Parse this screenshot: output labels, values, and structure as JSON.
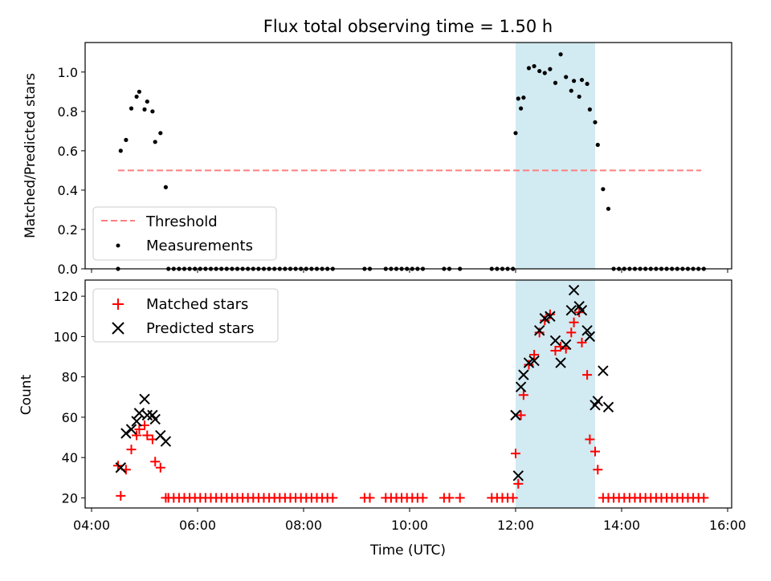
{
  "title": "Flux total observing time = 1.50 h",
  "chart_data": [
    {
      "type": "scatter",
      "ylabel": "Matched/Predicted stars",
      "xlabel": "",
      "ylim": [
        0,
        1.15
      ],
      "xlim": [
        "04:00",
        "16:00"
      ],
      "y_ticks": [
        "0.0",
        "0.2",
        "0.4",
        "0.6",
        "0.8",
        "1.0"
      ],
      "legend_position": "lower-left",
      "shaded_interval": {
        "start": "12:00",
        "end": "13:30",
        "color": "#add8e6"
      },
      "threshold": {
        "name": "Threshold",
        "value": 0.5,
        "x_start": "04:30",
        "x_end": "15:30",
        "color": "#ff7f7f",
        "style": "dashed"
      },
      "series": [
        {
          "name": "Measurements",
          "color": "#000000",
          "marker": "dot",
          "points": [
            [
              "04:30",
              0.0
            ],
            [
              "04:33",
              0.6
            ],
            [
              "04:39",
              0.655
            ],
            [
              "04:45",
              0.815
            ],
            [
              "04:51",
              0.875
            ],
            [
              "04:54",
              0.9
            ],
            [
              "05:00",
              0.81
            ],
            [
              "05:03",
              0.85
            ],
            [
              "05:09",
              0.8
            ],
            [
              "05:12",
              0.645
            ],
            [
              "05:18",
              0.69
            ],
            [
              "05:24",
              0.415
            ],
            [
              "05:27",
              0.0
            ],
            [
              "05:33",
              0.0
            ],
            [
              "05:39",
              0.0
            ],
            [
              "05:45",
              0.0
            ],
            [
              "05:51",
              0.0
            ],
            [
              "05:57",
              0.0
            ],
            [
              "06:03",
              0.0
            ],
            [
              "06:09",
              0.0
            ],
            [
              "06:15",
              0.0
            ],
            [
              "06:21",
              0.0
            ],
            [
              "06:27",
              0.0
            ],
            [
              "06:33",
              0.0
            ],
            [
              "06:39",
              0.0
            ],
            [
              "06:45",
              0.0
            ],
            [
              "06:51",
              0.0
            ],
            [
              "06:57",
              0.0
            ],
            [
              "07:03",
              0.0
            ],
            [
              "07:09",
              0.0
            ],
            [
              "07:15",
              0.0
            ],
            [
              "07:21",
              0.0
            ],
            [
              "07:27",
              0.0
            ],
            [
              "07:33",
              0.0
            ],
            [
              "07:39",
              0.0
            ],
            [
              "07:45",
              0.0
            ],
            [
              "07:51",
              0.0
            ],
            [
              "07:57",
              0.0
            ],
            [
              "08:03",
              0.0
            ],
            [
              "08:09",
              0.0
            ],
            [
              "08:15",
              0.0
            ],
            [
              "08:21",
              0.0
            ],
            [
              "08:27",
              0.0
            ],
            [
              "08:33",
              0.0
            ],
            [
              "09:09",
              0.0
            ],
            [
              "09:15",
              0.0
            ],
            [
              "09:33",
              0.0
            ],
            [
              "09:39",
              0.0
            ],
            [
              "09:45",
              0.0
            ],
            [
              "09:51",
              0.0
            ],
            [
              "09:57",
              0.0
            ],
            [
              "10:03",
              0.0
            ],
            [
              "10:09",
              0.0
            ],
            [
              "10:15",
              0.0
            ],
            [
              "10:39",
              0.0
            ],
            [
              "10:45",
              0.0
            ],
            [
              "10:57",
              0.0
            ],
            [
              "11:33",
              0.0
            ],
            [
              "11:39",
              0.0
            ],
            [
              "11:45",
              0.0
            ],
            [
              "11:51",
              0.0
            ],
            [
              "11:57",
              0.0
            ],
            [
              "12:00",
              0.69
            ],
            [
              "12:03",
              0.865
            ],
            [
              "12:06",
              0.815
            ],
            [
              "12:09",
              0.87
            ],
            [
              "12:15",
              1.02
            ],
            [
              "12:21",
              1.03
            ],
            [
              "12:27",
              1.005
            ],
            [
              "12:33",
              0.995
            ],
            [
              "12:39",
              1.015
            ],
            [
              "12:45",
              0.945
            ],
            [
              "12:51",
              1.09
            ],
            [
              "12:57",
              0.975
            ],
            [
              "13:03",
              0.905
            ],
            [
              "13:06",
              0.955
            ],
            [
              "13:12",
              0.875
            ],
            [
              "13:15",
              0.96
            ],
            [
              "13:21",
              0.94
            ],
            [
              "13:24",
              0.81
            ],
            [
              "13:30",
              0.745
            ],
            [
              "13:33",
              0.63
            ],
            [
              "13:39",
              0.405
            ],
            [
              "13:45",
              0.305
            ],
            [
              "13:51",
              0.0
            ],
            [
              "13:57",
              0.0
            ],
            [
              "14:03",
              0.0
            ],
            [
              "14:09",
              0.0
            ],
            [
              "14:15",
              0.0
            ],
            [
              "14:21",
              0.0
            ],
            [
              "14:27",
              0.0
            ],
            [
              "14:33",
              0.0
            ],
            [
              "14:39",
              0.0
            ],
            [
              "14:45",
              0.0
            ],
            [
              "14:51",
              0.0
            ],
            [
              "14:57",
              0.0
            ],
            [
              "15:03",
              0.0
            ],
            [
              "15:09",
              0.0
            ],
            [
              "15:15",
              0.0
            ],
            [
              "15:21",
              0.0
            ],
            [
              "15:27",
              0.0
            ],
            [
              "15:33",
              0.0
            ]
          ]
        }
      ]
    },
    {
      "type": "scatter",
      "ylabel": "Count",
      "xlabel": "Time (UTC)",
      "ylim": [
        15,
        128
      ],
      "xlim": [
        "04:00",
        "16:00"
      ],
      "x_ticks": [
        "04:00",
        "06:00",
        "08:00",
        "10:00",
        "12:00",
        "14:00",
        "16:00"
      ],
      "y_ticks": [
        "20",
        "40",
        "60",
        "80",
        "100",
        "120"
      ],
      "legend_position": "top-left",
      "shaded_interval": {
        "start": "12:00",
        "end": "13:30",
        "color": "#add8e6"
      },
      "series": [
        {
          "name": "Matched stars",
          "color": "#ff0000",
          "marker": "plus",
          "points": [
            [
              "04:30",
              36
            ],
            [
              "04:33",
              21
            ],
            [
              "04:39",
              34
            ],
            [
              "04:45",
              44
            ],
            [
              "04:51",
              51
            ],
            [
              "04:54",
              54
            ],
            [
              "05:00",
              56
            ],
            [
              "05:03",
              51
            ],
            [
              "05:09",
              49
            ],
            [
              "05:12",
              38
            ],
            [
              "05:18",
              35
            ],
            [
              "05:24",
              20
            ],
            [
              "05:27",
              20
            ],
            [
              "05:33",
              20
            ],
            [
              "05:39",
              20
            ],
            [
              "05:45",
              20
            ],
            [
              "05:51",
              20
            ],
            [
              "05:57",
              20
            ],
            [
              "06:03",
              20
            ],
            [
              "06:09",
              20
            ],
            [
              "06:15",
              20
            ],
            [
              "06:21",
              20
            ],
            [
              "06:27",
              20
            ],
            [
              "06:33",
              20
            ],
            [
              "06:39",
              20
            ],
            [
              "06:45",
              20
            ],
            [
              "06:51",
              20
            ],
            [
              "06:57",
              20
            ],
            [
              "07:03",
              20
            ],
            [
              "07:09",
              20
            ],
            [
              "07:15",
              20
            ],
            [
              "07:21",
              20
            ],
            [
              "07:27",
              20
            ],
            [
              "07:33",
              20
            ],
            [
              "07:39",
              20
            ],
            [
              "07:45",
              20
            ],
            [
              "07:51",
              20
            ],
            [
              "07:57",
              20
            ],
            [
              "08:03",
              20
            ],
            [
              "08:09",
              20
            ],
            [
              "08:15",
              20
            ],
            [
              "08:21",
              20
            ],
            [
              "08:27",
              20
            ],
            [
              "08:33",
              20
            ],
            [
              "09:09",
              20
            ],
            [
              "09:15",
              20
            ],
            [
              "09:33",
              20
            ],
            [
              "09:39",
              20
            ],
            [
              "09:45",
              20
            ],
            [
              "09:51",
              20
            ],
            [
              "09:57",
              20
            ],
            [
              "10:03",
              20
            ],
            [
              "10:09",
              20
            ],
            [
              "10:15",
              20
            ],
            [
              "10:39",
              20
            ],
            [
              "10:45",
              20
            ],
            [
              "10:57",
              20
            ],
            [
              "11:33",
              20
            ],
            [
              "11:39",
              20
            ],
            [
              "11:45",
              20
            ],
            [
              "11:51",
              20
            ],
            [
              "11:57",
              20
            ],
            [
              "12:00",
              42
            ],
            [
              "12:03",
              27
            ],
            [
              "12:06",
              61
            ],
            [
              "12:09",
              71
            ],
            [
              "12:15",
              86
            ],
            [
              "12:21",
              91
            ],
            [
              "12:27",
              102
            ],
            [
              "12:33",
              108
            ],
            [
              "12:39",
              111
            ],
            [
              "12:45",
              93
            ],
            [
              "12:51",
              95
            ],
            [
              "12:57",
              94
            ],
            [
              "13:03",
              102
            ],
            [
              "13:06",
              107
            ],
            [
              "13:12",
              112
            ],
            [
              "13:15",
              97
            ],
            [
              "13:21",
              81
            ],
            [
              "13:24",
              49
            ],
            [
              "13:30",
              43
            ],
            [
              "13:33",
              34
            ],
            [
              "13:39",
              20
            ],
            [
              "13:45",
              20
            ],
            [
              "13:51",
              20
            ],
            [
              "13:57",
              20
            ],
            [
              "14:03",
              20
            ],
            [
              "14:09",
              20
            ],
            [
              "14:15",
              20
            ],
            [
              "14:21",
              20
            ],
            [
              "14:27",
              20
            ],
            [
              "14:33",
              20
            ],
            [
              "14:39",
              20
            ],
            [
              "14:45",
              20
            ],
            [
              "14:51",
              20
            ],
            [
              "14:57",
              20
            ],
            [
              "15:03",
              20
            ],
            [
              "15:09",
              20
            ],
            [
              "15:15",
              20
            ],
            [
              "15:21",
              20
            ],
            [
              "15:27",
              20
            ],
            [
              "15:33",
              20
            ]
          ]
        },
        {
          "name": "Predicted stars",
          "color": "#000000",
          "marker": "x",
          "points": [
            [
              "04:33",
              35
            ],
            [
              "04:39",
              52
            ],
            [
              "04:45",
              54
            ],
            [
              "04:51",
              58
            ],
            [
              "04:54",
              62
            ],
            [
              "05:00",
              69
            ],
            [
              "05:03",
              61
            ],
            [
              "05:09",
              61
            ],
            [
              "05:12",
              59
            ],
            [
              "05:18",
              51
            ],
            [
              "05:24",
              48
            ],
            [
              "12:00",
              61
            ],
            [
              "12:03",
              31
            ],
            [
              "12:06",
              75
            ],
            [
              "12:09",
              81
            ],
            [
              "12:15",
              87
            ],
            [
              "12:21",
              88
            ],
            [
              "12:27",
              103
            ],
            [
              "12:33",
              109
            ],
            [
              "12:39",
              110
            ],
            [
              "12:45",
              98
            ],
            [
              "12:51",
              87
            ],
            [
              "12:57",
              96
            ],
            [
              "13:03",
              113
            ],
            [
              "13:06",
              123
            ],
            [
              "13:12",
              115
            ],
            [
              "13:15",
              113
            ],
            [
              "13:21",
              103
            ],
            [
              "13:24",
              100
            ],
            [
              "13:30",
              66
            ],
            [
              "13:33",
              68
            ],
            [
              "13:39",
              83
            ],
            [
              "13:45",
              65
            ]
          ]
        }
      ]
    }
  ]
}
